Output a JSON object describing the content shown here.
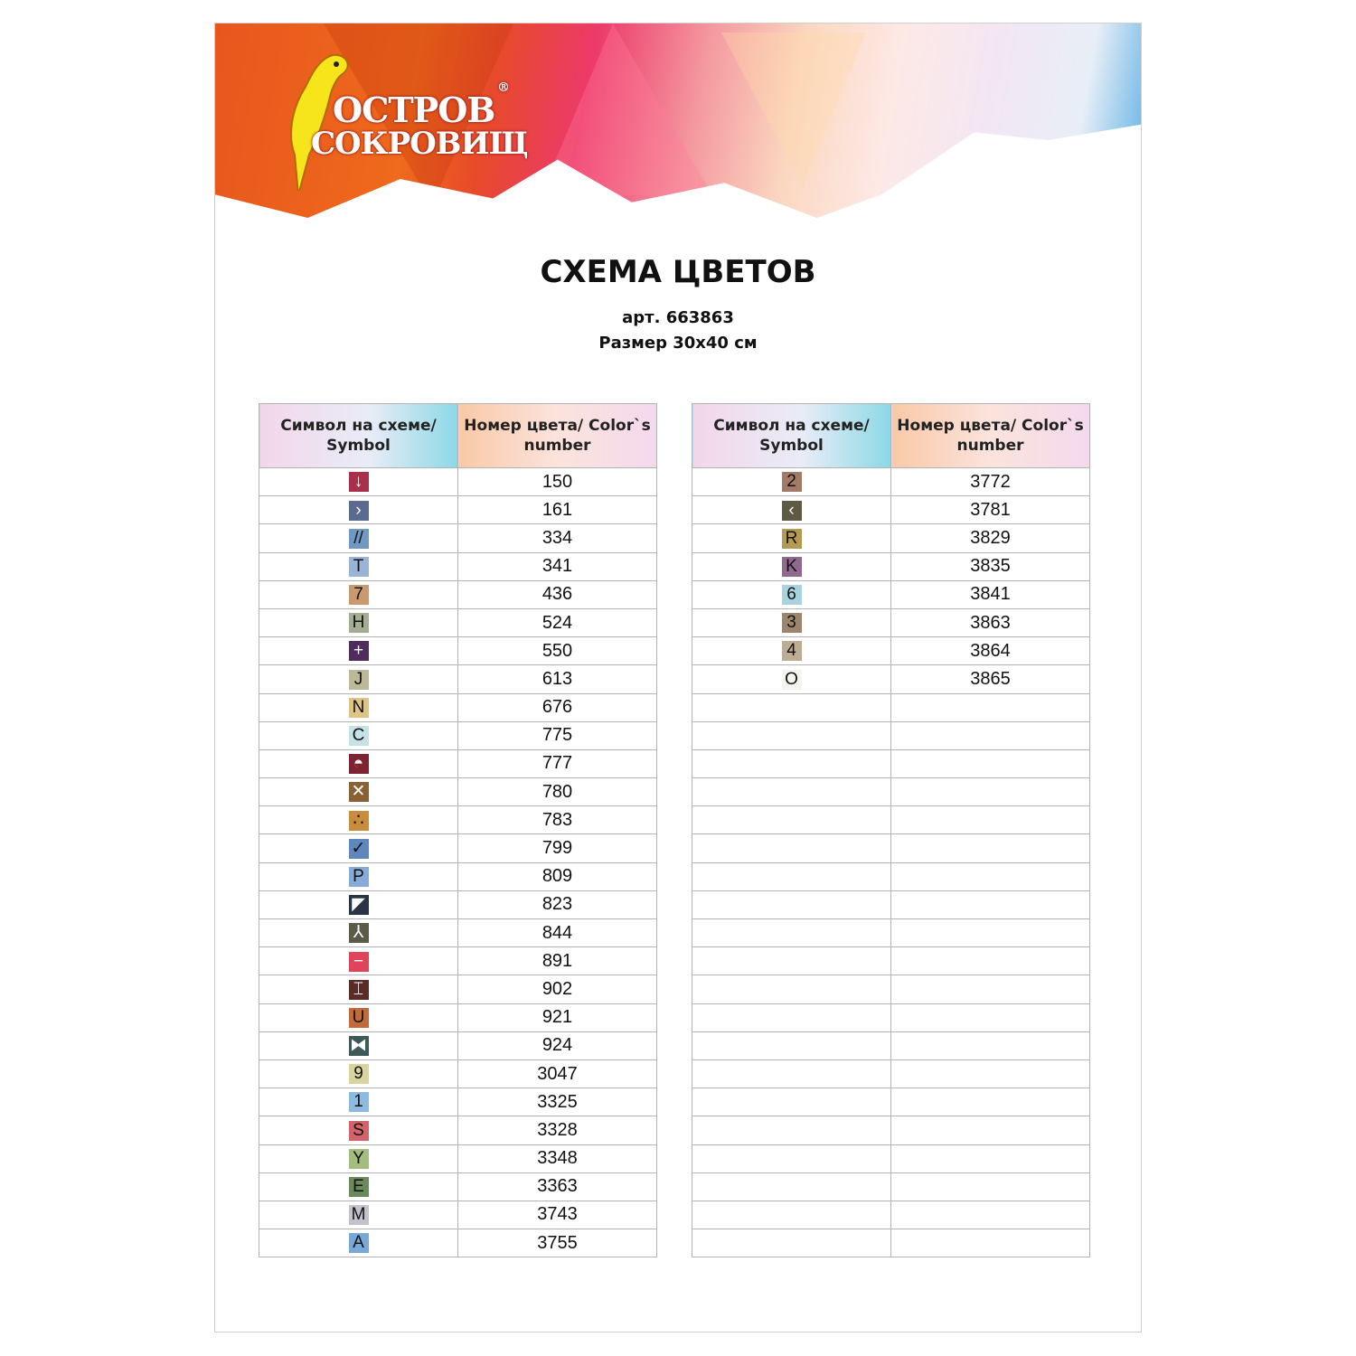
{
  "brand": {
    "name_line1": "ОСТРОВ",
    "name_line2": "СОКРОВИЩ",
    "registered": "®"
  },
  "title": "СХЕМА ЦВЕТОВ",
  "article": "арт. 663863",
  "size": "Размер 30х40 см",
  "table_headers": {
    "symbol": "Символ на схеме/ Symbol",
    "color_number": "Номер цвета/ Color`s number"
  },
  "left_table": [
    {
      "symbol": "↓",
      "bg": "#a8304a",
      "fg": "#fff",
      "number": "150"
    },
    {
      "symbol": "›",
      "bg": "#5b6a8f",
      "fg": "#fff",
      "number": "161"
    },
    {
      "symbol": "//",
      "bg": "#6f98c2",
      "fg": "#111",
      "number": "334"
    },
    {
      "symbol": "T",
      "bg": "#9ab4d6",
      "fg": "#111",
      "number": "341"
    },
    {
      "symbol": "7",
      "bg": "#c99a6e",
      "fg": "#111",
      "number": "436"
    },
    {
      "symbol": "H",
      "bg": "#a3ad92",
      "fg": "#111",
      "number": "524"
    },
    {
      "symbol": "+",
      "bg": "#4e2d5e",
      "fg": "#fff",
      "number": "550"
    },
    {
      "symbol": "J",
      "bg": "#bcb89a",
      "fg": "#111",
      "number": "613"
    },
    {
      "symbol": "N",
      "bg": "#ddc487",
      "fg": "#111",
      "number": "676"
    },
    {
      "symbol": "C",
      "bg": "#c6e2e6",
      "fg": "#111",
      "number": "775"
    },
    {
      "symbol": "◓",
      "bg": "#7e2331",
      "fg": "#fff",
      "number": "777"
    },
    {
      "symbol": "✕",
      "bg": "#8a6132",
      "fg": "#fff",
      "number": "780"
    },
    {
      "symbol": "∴",
      "bg": "#c98c3c",
      "fg": "#111",
      "number": "783"
    },
    {
      "symbol": "✓",
      "bg": "#5e88bd",
      "fg": "#111",
      "number": "799"
    },
    {
      "symbol": "P",
      "bg": "#85acd8",
      "fg": "#111",
      "number": "809"
    },
    {
      "symbol": "◤",
      "bg": "#283346",
      "fg": "#fff",
      "number": "823"
    },
    {
      "symbol": "⅄",
      "bg": "#5c5a48",
      "fg": "#fff",
      "number": "844"
    },
    {
      "symbol": "−",
      "bg": "#e0445a",
      "fg": "#fff",
      "number": "891"
    },
    {
      "symbol": "⌶",
      "bg": "#5b2b28",
      "fg": "#fff",
      "number": "902"
    },
    {
      "symbol": "U",
      "bg": "#c26a3a",
      "fg": "#111",
      "number": "921"
    },
    {
      "symbol": "⧓",
      "bg": "#3d5a58",
      "fg": "#fff",
      "number": "924"
    },
    {
      "symbol": "9",
      "bg": "#d9d49e",
      "fg": "#111",
      "number": "3047"
    },
    {
      "symbol": "1",
      "bg": "#8dbbe0",
      "fg": "#111",
      "number": "3325"
    },
    {
      "symbol": "S",
      "bg": "#d2636a",
      "fg": "#111",
      "number": "3328"
    },
    {
      "symbol": "Y",
      "bg": "#a2bd7e",
      "fg": "#111",
      "number": "3348"
    },
    {
      "symbol": "E",
      "bg": "#6a8a5c",
      "fg": "#111",
      "number": "3363"
    },
    {
      "symbol": "M",
      "bg": "#c4c0cc",
      "fg": "#111",
      "number": "3743"
    },
    {
      "symbol": "A",
      "bg": "#78a8d6",
      "fg": "#111",
      "number": "3755"
    }
  ],
  "right_table": [
    {
      "symbol": "2",
      "bg": "#a27a66",
      "fg": "#111",
      "number": "3772"
    },
    {
      "symbol": "‹",
      "bg": "#5e5a44",
      "fg": "#fff",
      "number": "3781"
    },
    {
      "symbol": "R",
      "bg": "#b59a54",
      "fg": "#111",
      "number": "3829"
    },
    {
      "symbol": "K",
      "bg": "#8f6a8e",
      "fg": "#111",
      "number": "3835"
    },
    {
      "symbol": "6",
      "bg": "#a8d2e0",
      "fg": "#111",
      "number": "3841"
    },
    {
      "symbol": "3",
      "bg": "#9c856c",
      "fg": "#111",
      "number": "3863"
    },
    {
      "symbol": "4",
      "bg": "#bdad94",
      "fg": "#111",
      "number": "3864"
    },
    {
      "symbol": "O",
      "bg": "#f6f4ef",
      "fg": "#111",
      "number": "3865"
    }
  ],
  "right_table_empty_rows": 20
}
